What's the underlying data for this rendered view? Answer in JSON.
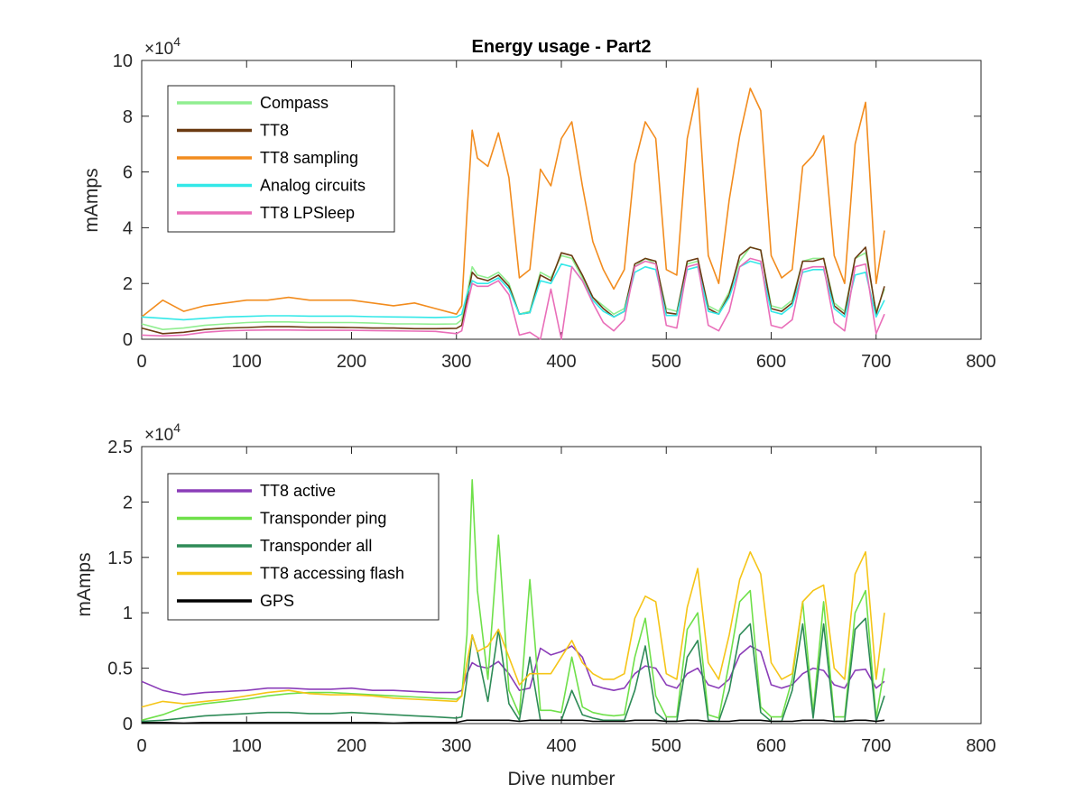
{
  "chart_data": [
    {
      "type": "line",
      "title": "Energy usage - Part2",
      "xlabel": "",
      "ylabel": "mAmps",
      "exponent_label": "×10^4",
      "exponent_base": "×10",
      "exponent_power": "4",
      "xlim": [
        0,
        800
      ],
      "ylim": [
        0,
        100000
      ],
      "xticks": [
        0,
        100,
        200,
        300,
        400,
        500,
        600,
        700,
        800
      ],
      "yticks": [
        0,
        20000,
        40000,
        60000,
        80000,
        100000
      ],
      "ytick_labels": [
        "0",
        "2",
        "4",
        "6",
        "8",
        "10"
      ],
      "grid": false,
      "legend_location": "top-left",
      "x": [
        0,
        20,
        40,
        60,
        80,
        100,
        120,
        140,
        160,
        180,
        200,
        220,
        240,
        260,
        280,
        300,
        305,
        310,
        315,
        320,
        330,
        340,
        350,
        360,
        370,
        380,
        390,
        400,
        410,
        420,
        430,
        440,
        450,
        460,
        470,
        480,
        490,
        500,
        510,
        520,
        530,
        540,
        550,
        560,
        570,
        580,
        590,
        600,
        610,
        620,
        630,
        640,
        650,
        660,
        670,
        680,
        690,
        700,
        708
      ],
      "series": [
        {
          "name": "Compass",
          "color": "#90EE90",
          "values": [
            5500,
            3500,
            4000,
            5000,
            5500,
            6000,
            6200,
            6200,
            6000,
            6000,
            6000,
            5800,
            5500,
            5500,
            5400,
            5500,
            7000,
            16000,
            26000,
            23000,
            22000,
            24000,
            20000,
            9000,
            10000,
            24000,
            22000,
            30000,
            29000,
            22000,
            15000,
            12000,
            9000,
            11000,
            26000,
            29000,
            27000,
            11000,
            10000,
            27000,
            28000,
            12000,
            10000,
            17000,
            28000,
            33000,
            32000,
            12000,
            11000,
            14000,
            28000,
            29000,
            29000,
            13000,
            10000,
            29000,
            31000,
            10000,
            18000
          ]
        },
        {
          "name": "TT8",
          "color": "#6B3A12",
          "values": [
            4000,
            2000,
            2500,
            3500,
            4000,
            4200,
            4500,
            4500,
            4300,
            4300,
            4200,
            4000,
            4000,
            3800,
            3800,
            3900,
            5000,
            14000,
            24000,
            22000,
            21000,
            23000,
            19000,
            9000,
            9500,
            23000,
            21000,
            31000,
            30000,
            23000,
            15000,
            11000,
            8000,
            10000,
            27000,
            29000,
            28000,
            9500,
            9000,
            28000,
            29000,
            11000,
            9000,
            16000,
            30000,
            33000,
            32000,
            11000,
            10000,
            13000,
            28000,
            28000,
            29000,
            12000,
            9000,
            29000,
            33000,
            9000,
            19000
          ]
        },
        {
          "name": "TT8 sampling",
          "color": "#F28C1E",
          "values": [
            8000,
            14000,
            10000,
            12000,
            13000,
            14000,
            14000,
            15000,
            14000,
            14000,
            14000,
            13000,
            12000,
            13000,
            11000,
            9000,
            12000,
            45000,
            75000,
            65000,
            62000,
            74000,
            58000,
            22000,
            25000,
            61000,
            55000,
            72000,
            78000,
            55000,
            35000,
            25000,
            18000,
            25000,
            63000,
            78000,
            72000,
            25000,
            23000,
            72000,
            90000,
            30000,
            20000,
            50000,
            73000,
            90000,
            82000,
            30000,
            22000,
            25000,
            62000,
            66000,
            73000,
            30000,
            20000,
            70000,
            85000,
            20000,
            39000
          ]
        },
        {
          "name": "Analog circuits",
          "color": "#33E8E8",
          "values": [
            8000,
            7500,
            7000,
            7500,
            8000,
            8200,
            8400,
            8400,
            8300,
            8300,
            8300,
            8100,
            8000,
            7900,
            7800,
            8000,
            9000,
            16000,
            21000,
            20000,
            20000,
            22000,
            18000,
            9000,
            9500,
            21000,
            20000,
            27000,
            26000,
            21000,
            14000,
            10000,
            8000,
            10000,
            24000,
            26000,
            25000,
            8500,
            8500,
            25000,
            26000,
            10000,
            9000,
            15000,
            26000,
            28000,
            27000,
            10000,
            9000,
            12000,
            24000,
            25000,
            25000,
            11000,
            8000,
            23000,
            24000,
            8000,
            14000
          ]
        },
        {
          "name": "TT8 LPSleep",
          "color": "#E96EB9",
          "values": [
            1500,
            1200,
            1500,
            2500,
            3000,
            3200,
            3300,
            3300,
            3200,
            3200,
            3200,
            3100,
            3000,
            2900,
            2800,
            2000,
            3000,
            12000,
            20000,
            19000,
            19000,
            21000,
            16000,
            1500,
            2500,
            0,
            18000,
            0,
            26000,
            21000,
            13000,
            6000,
            3000,
            7000,
            26000,
            28000,
            27000,
            5000,
            4000,
            26000,
            27000,
            5000,
            3000,
            10000,
            26000,
            29000,
            28000,
            5000,
            4000,
            7000,
            25000,
            26000,
            26000,
            6000,
            3000,
            26000,
            27000,
            2000,
            9000
          ]
        }
      ]
    },
    {
      "type": "line",
      "title": "",
      "xlabel": "Dive number",
      "ylabel": "mAmps",
      "exponent_label": "×10^4",
      "exponent_base": "×10",
      "exponent_power": "4",
      "xlim": [
        0,
        800
      ],
      "ylim": [
        0,
        25000
      ],
      "xticks": [
        0,
        100,
        200,
        300,
        400,
        500,
        600,
        700,
        800
      ],
      "yticks": [
        0,
        5000,
        10000,
        15000,
        20000,
        25000
      ],
      "ytick_labels": [
        "0",
        "0.5",
        "1",
        "1.5",
        "2",
        "2.5"
      ],
      "grid": false,
      "legend_location": "top-left",
      "x": [
        0,
        20,
        40,
        60,
        80,
        100,
        120,
        140,
        160,
        180,
        200,
        220,
        240,
        260,
        280,
        300,
        305,
        310,
        315,
        320,
        330,
        340,
        350,
        360,
        370,
        380,
        390,
        400,
        410,
        420,
        430,
        440,
        450,
        460,
        470,
        480,
        490,
        500,
        510,
        520,
        530,
        540,
        550,
        560,
        570,
        580,
        590,
        600,
        610,
        620,
        630,
        640,
        650,
        660,
        670,
        680,
        690,
        700,
        708
      ],
      "series": [
        {
          "name": "TT8 active",
          "color": "#8B3DB8",
          "values": [
            3800,
            3000,
            2600,
            2800,
            2900,
            3000,
            3200,
            3200,
            3100,
            3100,
            3200,
            3000,
            3000,
            2900,
            2800,
            2800,
            3000,
            4500,
            5500,
            5200,
            5000,
            5600,
            4500,
            3000,
            3200,
            6800,
            6200,
            6500,
            7000,
            6000,
            3500,
            3200,
            3000,
            3200,
            4500,
            5200,
            5000,
            3500,
            3200,
            4500,
            5000,
            3500,
            3200,
            4000,
            6200,
            7000,
            6500,
            3500,
            3200,
            3500,
            4500,
            5000,
            4800,
            3500,
            3200,
            4800,
            4900,
            3200,
            3800
          ]
        },
        {
          "name": "Transponder ping",
          "color": "#6FE04A",
          "values": [
            300,
            800,
            1500,
            1800,
            2000,
            2200,
            2500,
            2700,
            2800,
            2800,
            2700,
            2600,
            2500,
            2400,
            2300,
            2200,
            2500,
            8000,
            22000,
            12000,
            4000,
            17000,
            3000,
            800,
            13000,
            1200,
            1200,
            1000,
            6000,
            1500,
            1000,
            800,
            700,
            800,
            6000,
            9500,
            2500,
            600,
            600,
            8500,
            10000,
            800,
            500,
            5500,
            11000,
            12000,
            1500,
            600,
            600,
            4000,
            11000,
            1000,
            11000,
            600,
            600,
            10000,
            12000,
            500,
            5000
          ]
        },
        {
          "name": "Transponder all",
          "color": "#2E8B57",
          "values": [
            200,
            300,
            500,
            700,
            800,
            900,
            1000,
            1000,
            900,
            900,
            1000,
            900,
            800,
            700,
            600,
            500,
            600,
            4000,
            8000,
            6500,
            2000,
            8500,
            1800,
            300,
            6000,
            300,
            300,
            300,
            3000,
            800,
            500,
            300,
            300,
            300,
            3000,
            7000,
            1000,
            200,
            200,
            6000,
            7500,
            300,
            200,
            3000,
            8000,
            9000,
            1000,
            200,
            200,
            3000,
            9000,
            500,
            9000,
            200,
            200,
            8500,
            9500,
            200,
            2500
          ]
        },
        {
          "name": "TT8 accessing flash",
          "color": "#F5C518",
          "values": [
            1500,
            2000,
            1800,
            2000,
            2200,
            2500,
            2800,
            3000,
            2700,
            2600,
            2600,
            2500,
            2300,
            2200,
            2100,
            2000,
            2500,
            5500,
            8000,
            6500,
            7000,
            8500,
            6000,
            3500,
            4500,
            4500,
            4500,
            6000,
            7500,
            5500,
            4500,
            4000,
            4000,
            4500,
            9500,
            11500,
            11000,
            4500,
            4000,
            10500,
            14000,
            5500,
            4000,
            8000,
            13000,
            15500,
            13500,
            5500,
            4000,
            4500,
            11000,
            12000,
            12500,
            5000,
            4000,
            13500,
            15500,
            4000,
            10000
          ]
        },
        {
          "name": "GPS",
          "color": "#000000",
          "values": [
            100,
            100,
            50,
            100,
            100,
            100,
            100,
            100,
            100,
            100,
            100,
            100,
            50,
            100,
            100,
            100,
            200,
            300,
            300,
            300,
            300,
            300,
            300,
            200,
            300,
            300,
            300,
            300,
            300,
            300,
            200,
            200,
            200,
            200,
            300,
            300,
            300,
            200,
            200,
            300,
            300,
            200,
            200,
            200,
            300,
            300,
            300,
            200,
            200,
            200,
            300,
            300,
            300,
            200,
            200,
            300,
            300,
            200,
            300
          ]
        }
      ]
    }
  ]
}
